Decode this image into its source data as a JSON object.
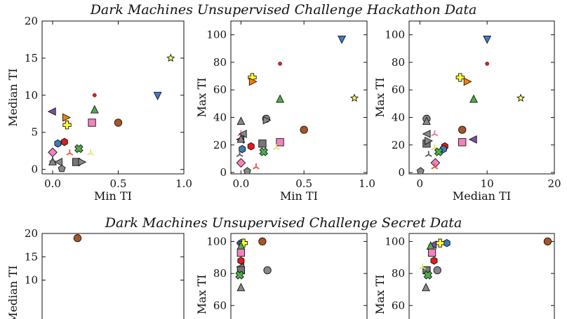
{
  "figure": {
    "title_top": "Dark Machines Unsupervised Challenge Hackathon Data",
    "title_bottom": "Dark Machines Unsupervised Challenge Secret Data"
  },
  "chart_data": [
    {
      "type": "scatter",
      "panel": "hackathon-median-vs-min",
      "xlabel": "Min TI",
      "ylabel": "Median TI",
      "xlim": [
        -0.08,
        1.0
      ],
      "ylim": [
        -0.6,
        20
      ],
      "xticks": [
        0.0,
        0.5,
        1.0
      ],
      "xtick_labels": [
        "0.0",
        "0.5",
        "1.0"
      ],
      "yticks": [
        0,
        5,
        10,
        15,
        20
      ],
      "ytick_labels": [
        "0",
        "5",
        "10",
        "15",
        "20"
      ],
      "points": [
        {
          "x": 0.9,
          "y": 15.0,
          "marker": "star",
          "color": "#ffff66"
        },
        {
          "x": 0.8,
          "y": 10.0,
          "marker": "tri-down",
          "color": "#4477cc"
        },
        {
          "x": 0.32,
          "y": 10.0,
          "marker": "dot",
          "color": "#e41a1c"
        },
        {
          "x": 0.0,
          "y": 7.8,
          "marker": "tri-left",
          "color": "#7b4fa8"
        },
        {
          "x": 0.32,
          "y": 8.0,
          "marker": "tri-up",
          "color": "#4daf4a"
        },
        {
          "x": 0.1,
          "y": 7.0,
          "marker": "tri-right",
          "color": "#ff7f00"
        },
        {
          "x": 0.5,
          "y": 6.3,
          "marker": "circle",
          "color": "#a65628"
        },
        {
          "x": 0.3,
          "y": 6.3,
          "marker": "square",
          "color": "#f781bf"
        },
        {
          "x": 0.11,
          "y": 6.0,
          "marker": "plus",
          "color": "#ffff33"
        },
        {
          "x": 0.09,
          "y": 3.7,
          "marker": "hexagon",
          "color": "#e41a1c"
        },
        {
          "x": 0.04,
          "y": 3.5,
          "marker": "hexagon",
          "color": "#377eb8"
        },
        {
          "x": 0.2,
          "y": 2.8,
          "marker": "x",
          "color": "#4daf4a"
        },
        {
          "x": 0.0,
          "y": 2.3,
          "marker": "diamond",
          "color": "#f781bf"
        },
        {
          "x": 0.13,
          "y": 2.2,
          "marker": "tri",
          "color": "#e6553a"
        },
        {
          "x": 0.29,
          "y": 2.2,
          "marker": "tri",
          "color": "#d9e86b"
        },
        {
          "x": 0.0,
          "y": 1.0,
          "marker": "tri-up",
          "color": "#888888"
        },
        {
          "x": 0.05,
          "y": 1.0,
          "marker": "tri-left",
          "color": "#888888"
        },
        {
          "x": 0.18,
          "y": 1.0,
          "marker": "square",
          "color": "#777777"
        },
        {
          "x": 0.22,
          "y": 1.0,
          "marker": "tri-right",
          "color": "#888888"
        },
        {
          "x": 0.07,
          "y": 0.1,
          "marker": "pentagon",
          "color": "#888888"
        },
        {
          "x": 0.0,
          "y": 1.3,
          "marker": "tri",
          "color": "#555555"
        }
      ]
    },
    {
      "type": "scatter",
      "panel": "hackathon-max-vs-min",
      "xlabel": "Min TI",
      "ylabel": "Max TI",
      "xlim": [
        -0.08,
        1.0
      ],
      "ylim": [
        -1,
        110
      ],
      "xticks": [
        0.0,
        0.5,
        1.0
      ],
      "xtick_labels": [
        "0.0",
        "0.5",
        "1.0"
      ],
      "yticks": [
        0,
        20,
        40,
        60,
        80,
        100
      ],
      "ytick_labels": [
        "0",
        "20",
        "40",
        "60",
        "80",
        "100"
      ],
      "points": [
        {
          "x": 0.8,
          "y": 97,
          "marker": "tri-down",
          "color": "#4477cc"
        },
        {
          "x": 0.31,
          "y": 79,
          "marker": "dot",
          "color": "#e41a1c"
        },
        {
          "x": 0.09,
          "y": 69,
          "marker": "plus",
          "color": "#ffff33"
        },
        {
          "x": 0.09,
          "y": 66,
          "marker": "tri-right",
          "color": "#ff7f00"
        },
        {
          "x": 0.9,
          "y": 54,
          "marker": "star",
          "color": "#ffff66"
        },
        {
          "x": 0.31,
          "y": 53,
          "marker": "tri-up",
          "color": "#4daf4a"
        },
        {
          "x": 0.2,
          "y": 39,
          "marker": "circle",
          "color": "#888888"
        },
        {
          "x": 0.0,
          "y": 37,
          "marker": "tri-up",
          "color": "#888888"
        },
        {
          "x": 0.2,
          "y": 38,
          "marker": "tri-right",
          "color": "#888888"
        },
        {
          "x": 0.5,
          "y": 31,
          "marker": "circle",
          "color": "#a65628"
        },
        {
          "x": 0.0,
          "y": 28,
          "marker": "tri",
          "color": "#f06ea0"
        },
        {
          "x": 0.02,
          "y": 28,
          "marker": "tri-left",
          "color": "#888888"
        },
        {
          "x": 0.0,
          "y": 24,
          "marker": "tri-left",
          "color": "#7b4fa8"
        },
        {
          "x": 0.0,
          "y": 24,
          "marker": "tri-up",
          "color": "#888888"
        },
        {
          "x": 0.31,
          "y": 22,
          "marker": "square",
          "color": "#f781bf"
        },
        {
          "x": 0.17,
          "y": 21,
          "marker": "square",
          "color": "#777777"
        },
        {
          "x": 0.08,
          "y": 19,
          "marker": "hexagon",
          "color": "#e41a1c"
        },
        {
          "x": 0.28,
          "y": 18,
          "marker": "tri",
          "color": "#d9e86b"
        },
        {
          "x": 0.01,
          "y": 17,
          "marker": "hexagon",
          "color": "#377eb8"
        },
        {
          "x": 0.18,
          "y": 15,
          "marker": "x",
          "color": "#4daf4a"
        },
        {
          "x": -0.01,
          "y": 13,
          "marker": "tri",
          "color": "#555555"
        },
        {
          "x": 0.0,
          "y": 7,
          "marker": "diamond",
          "color": "#f781bf"
        },
        {
          "x": 0.12,
          "y": 4,
          "marker": "tri",
          "color": "#e6553a"
        },
        {
          "x": 0.05,
          "y": 1,
          "marker": "pentagon",
          "color": "#888888"
        }
      ]
    },
    {
      "type": "scatter",
      "panel": "hackathon-max-vs-median",
      "xlabel": "Median TI",
      "ylabel": "Max TI",
      "xlim": [
        -1.6,
        20
      ],
      "ylim": [
        -1,
        110
      ],
      "xticks": [
        0,
        10,
        20
      ],
      "xtick_labels": [
        "0",
        "10",
        "20"
      ],
      "yticks": [
        0,
        20,
        40,
        60,
        80,
        100
      ],
      "ytick_labels": [
        "0",
        "20",
        "40",
        "60",
        "80",
        "100"
      ],
      "points": [
        {
          "x": 10,
          "y": 97,
          "marker": "tri-down",
          "color": "#4477cc"
        },
        {
          "x": 10,
          "y": 79,
          "marker": "dot",
          "color": "#e41a1c"
        },
        {
          "x": 6,
          "y": 69,
          "marker": "plus",
          "color": "#ffff33"
        },
        {
          "x": 7,
          "y": 66,
          "marker": "tri-right",
          "color": "#ff7f00"
        },
        {
          "x": 15,
          "y": 54,
          "marker": "star",
          "color": "#ffff66"
        },
        {
          "x": 8,
          "y": 53,
          "marker": "tri-up",
          "color": "#4daf4a"
        },
        {
          "x": 1,
          "y": 39,
          "marker": "circle",
          "color": "#888888"
        },
        {
          "x": 1,
          "y": 37,
          "marker": "tri-up",
          "color": "#888888"
        },
        {
          "x": 6.3,
          "y": 31,
          "marker": "circle",
          "color": "#a65628"
        },
        {
          "x": 1.1,
          "y": 28,
          "marker": "tri-left",
          "color": "#888888"
        },
        {
          "x": 2.2,
          "y": 28,
          "marker": "tri",
          "color": "#f06ea0"
        },
        {
          "x": 8,
          "y": 24,
          "marker": "tri-left",
          "color": "#7b4fa8"
        },
        {
          "x": 6.3,
          "y": 22,
          "marker": "square",
          "color": "#f781bf"
        },
        {
          "x": 1,
          "y": 21,
          "marker": "square",
          "color": "#777777"
        },
        {
          "x": 1.2,
          "y": 23,
          "marker": "tri-right",
          "color": "#888888"
        },
        {
          "x": 3.7,
          "y": 19,
          "marker": "hexagon",
          "color": "#e41a1c"
        },
        {
          "x": 3.5,
          "y": 17,
          "marker": "hexagon",
          "color": "#377eb8"
        },
        {
          "x": 2.2,
          "y": 18,
          "marker": "tri",
          "color": "#d9e86b"
        },
        {
          "x": 2.8,
          "y": 15,
          "marker": "x",
          "color": "#4daf4a"
        },
        {
          "x": 1.3,
          "y": 13,
          "marker": "tri",
          "color": "#555555"
        },
        {
          "x": 2.3,
          "y": 7,
          "marker": "diamond",
          "color": "#f781bf"
        },
        {
          "x": 2.2,
          "y": 4,
          "marker": "tri",
          "color": "#e6553a"
        },
        {
          "x": 0.1,
          "y": 1,
          "marker": "pentagon",
          "color": "#888888"
        }
      ]
    },
    {
      "type": "scatter",
      "panel": "secret-median",
      "xlabel": "",
      "ylabel": "Median TI",
      "xlim": [
        -0.08,
        1.0
      ],
      "ylim": [
        -0.6,
        20
      ],
      "yticks": [
        10,
        15,
        20
      ],
      "ytick_labels": [
        "10",
        "15",
        "20"
      ],
      "points": [
        {
          "x": 0.19,
          "y": 19,
          "marker": "circle",
          "color": "#a65628"
        }
      ]
    },
    {
      "type": "scatter",
      "panel": "secret-max-vs-min",
      "xlabel": "",
      "ylabel": "Max TI",
      "xlim": [
        -0.08,
        1.0
      ],
      "ylim": [
        45,
        105
      ],
      "yticks": [
        60,
        80,
        100
      ],
      "ytick_labels": [
        "60",
        "80",
        "100"
      ],
      "points": [
        {
          "x": 0.17,
          "y": 100,
          "marker": "circle",
          "color": "#a65628"
        },
        {
          "x": 0.0,
          "y": 99,
          "marker": "tri-left",
          "color": "#7b4fa8"
        },
        {
          "x": 0.0,
          "y": 99,
          "marker": "hexagon",
          "color": "#377eb8"
        },
        {
          "x": 0.02,
          "y": 99,
          "marker": "plus",
          "color": "#ffff33"
        },
        {
          "x": 0.0,
          "y": 97,
          "marker": "tri-up",
          "color": "#4daf4a"
        },
        {
          "x": 0.0,
          "y": 93,
          "marker": "square",
          "color": "#f781bf"
        },
        {
          "x": 0.0,
          "y": 88,
          "marker": "hexagon",
          "color": "#e41a1c"
        },
        {
          "x": 0.0,
          "y": 84,
          "marker": "tri-left",
          "color": "#888888"
        },
        {
          "x": 0.0,
          "y": 82,
          "marker": "square",
          "color": "#777777"
        },
        {
          "x": 0.21,
          "y": 82,
          "marker": "circle",
          "color": "#888888"
        },
        {
          "x": -0.01,
          "y": 79,
          "marker": "x",
          "color": "#4daf4a"
        },
        {
          "x": 0.0,
          "y": 71,
          "marker": "tri-up",
          "color": "#888888"
        }
      ]
    },
    {
      "type": "scatter",
      "panel": "secret-max-vs-median",
      "xlabel": "",
      "ylabel": "Max TI",
      "xlim": [
        -1.6,
        20
      ],
      "ylim": [
        45,
        105
      ],
      "yticks": [
        60,
        80,
        100
      ],
      "ytick_labels": [
        "60",
        "80",
        "100"
      ],
      "points": [
        {
          "x": 19,
          "y": 100,
          "marker": "circle",
          "color": "#a65628"
        },
        {
          "x": 4,
          "y": 99,
          "marker": "hexagon",
          "color": "#377eb8"
        },
        {
          "x": 3,
          "y": 99,
          "marker": "plus",
          "color": "#ffff33"
        },
        {
          "x": 2,
          "y": 98,
          "marker": "tri-left",
          "color": "#7b4fa8"
        },
        {
          "x": 1.6,
          "y": 97,
          "marker": "tri-up",
          "color": "#4daf4a"
        },
        {
          "x": 1.8,
          "y": 93,
          "marker": "square",
          "color": "#f781bf"
        },
        {
          "x": 2.1,
          "y": 88,
          "marker": "hexagon",
          "color": "#e41a1c"
        },
        {
          "x": 1,
          "y": 82,
          "marker": "square",
          "color": "#777777"
        },
        {
          "x": 2.6,
          "y": 82,
          "marker": "circle",
          "color": "#888888"
        },
        {
          "x": 0.4,
          "y": 84,
          "marker": "tri",
          "color": "#d9e86b"
        },
        {
          "x": 1.2,
          "y": 79,
          "marker": "x",
          "color": "#4daf4a"
        },
        {
          "x": 0.9,
          "y": 71,
          "marker": "tri-up",
          "color": "#888888"
        }
      ]
    }
  ]
}
